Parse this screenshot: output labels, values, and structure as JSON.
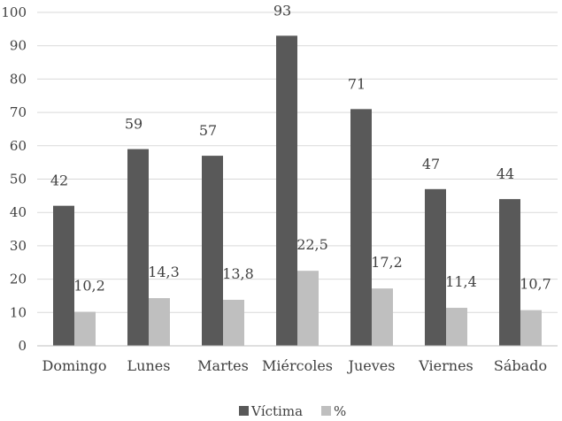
{
  "chart_data": {
    "type": "bar",
    "categories": [
      "Domingo",
      "Lunes",
      "Martes",
      "Miércoles",
      "Jueves",
      "Viernes",
      "Sábado"
    ],
    "series": [
      {
        "name": "Víctima",
        "values": [
          42,
          59,
          57,
          93,
          71,
          47,
          44
        ],
        "labels": [
          "42",
          "59",
          "57",
          "93",
          "71",
          "47",
          "44"
        ]
      },
      {
        "name": "%",
        "values": [
          10.2,
          14.3,
          13.8,
          22.5,
          17.2,
          11.4,
          10.7
        ],
        "labels": [
          "10,2",
          "14,3",
          "13,8",
          "22,5",
          "17,2",
          "11,4",
          "10,7"
        ]
      }
    ],
    "ylim": [
      0,
      100
    ],
    "yticks": [
      0,
      10,
      20,
      30,
      40,
      50,
      60,
      70,
      80,
      90,
      100
    ],
    "grid": true,
    "legend_position": "bottom",
    "colors": {
      "Víctima": "#595959",
      "%": "#bfbfbf",
      "grid": "#d9d9d9",
      "axis": "#bfbfbf"
    }
  }
}
